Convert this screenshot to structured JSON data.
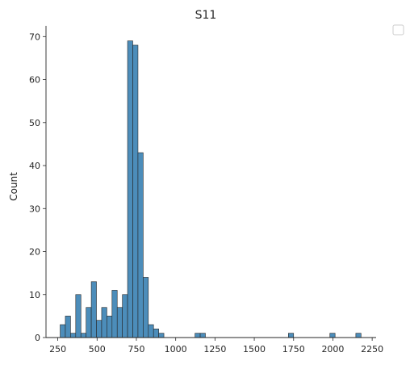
{
  "chart_data": {
    "type": "bar",
    "title": "S11",
    "xlabel": "",
    "ylabel": "Count",
    "xlim": [
      175,
      2275
    ],
    "ylim": [
      0,
      72.5
    ],
    "xticks": [
      250,
      500,
      750,
      1000,
      1250,
      1500,
      1750,
      2000,
      2250
    ],
    "yticks": [
      0,
      10,
      20,
      30,
      40,
      50,
      60,
      70
    ],
    "bin_width": 33,
    "bins": [
      {
        "x0": 265,
        "x1": 298,
        "count": 3
      },
      {
        "x0": 298,
        "x1": 331,
        "count": 5
      },
      {
        "x0": 331,
        "x1": 364,
        "count": 1
      },
      {
        "x0": 364,
        "x1": 397,
        "count": 10
      },
      {
        "x0": 397,
        "x1": 430,
        "count": 1
      },
      {
        "x0": 430,
        "x1": 463,
        "count": 7
      },
      {
        "x0": 463,
        "x1": 496,
        "count": 13
      },
      {
        "x0": 496,
        "x1": 529,
        "count": 4
      },
      {
        "x0": 529,
        "x1": 562,
        "count": 7
      },
      {
        "x0": 562,
        "x1": 595,
        "count": 5
      },
      {
        "x0": 595,
        "x1": 628,
        "count": 11
      },
      {
        "x0": 628,
        "x1": 661,
        "count": 7
      },
      {
        "x0": 661,
        "x1": 694,
        "count": 10
      },
      {
        "x0": 694,
        "x1": 727,
        "count": 69
      },
      {
        "x0": 727,
        "x1": 760,
        "count": 68
      },
      {
        "x0": 760,
        "x1": 793,
        "count": 43
      },
      {
        "x0": 793,
        "x1": 826,
        "count": 14
      },
      {
        "x0": 826,
        "x1": 859,
        "count": 3
      },
      {
        "x0": 859,
        "x1": 892,
        "count": 2
      },
      {
        "x0": 892,
        "x1": 925,
        "count": 1
      },
      {
        "x0": 1123,
        "x1": 1156,
        "count": 1
      },
      {
        "x0": 1156,
        "x1": 1189,
        "count": 1
      },
      {
        "x0": 1717,
        "x1": 1750,
        "count": 1
      },
      {
        "x0": 1981,
        "x1": 2014,
        "count": 1
      },
      {
        "x0": 2146,
        "x1": 2179,
        "count": 1
      }
    ],
    "bar_color": "#4C8DBA",
    "edge_color": "#262626",
    "grid": false,
    "legend": {
      "placement": "top-right outside",
      "entries": []
    }
  }
}
